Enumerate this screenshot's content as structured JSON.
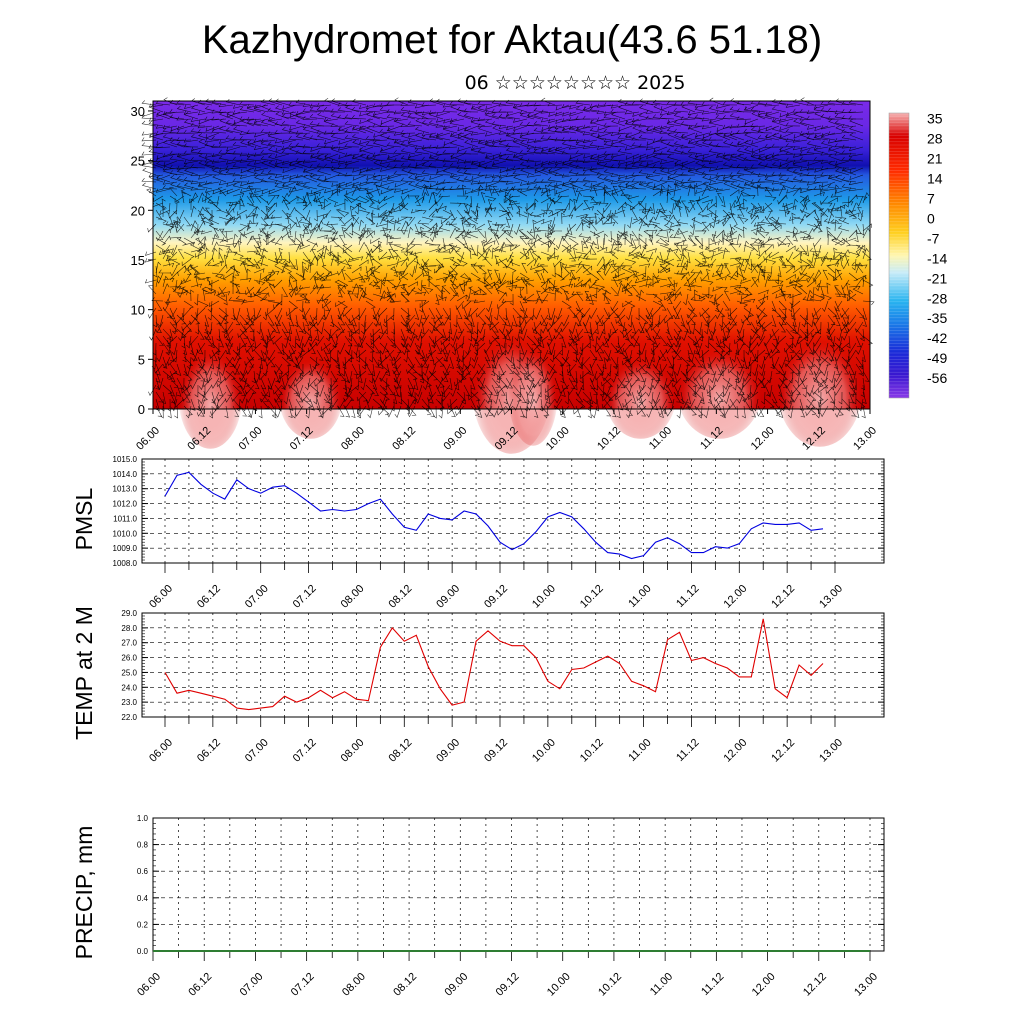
{
  "header": {
    "title": "Kazhydromet for Aktau(43.6 51.18)",
    "subtitle": "06 ☆☆☆☆☆☆☆☆ 2025"
  },
  "chart_data": [
    {
      "type": "heatmap",
      "title": "",
      "x_ticks": [
        "06.00",
        "06.12",
        "07.00",
        "07.12",
        "08.00",
        "08.12",
        "09.00",
        "09.12",
        "10.00",
        "10.12",
        "11.00",
        "11.12",
        "12.00",
        "12.12",
        "13.00"
      ],
      "y_ticks": [
        "0",
        "5",
        "10",
        "15",
        "20",
        "25",
        "30"
      ],
      "ylim": [
        0,
        31
      ],
      "colorbar_labels": [
        "35",
        "28",
        "21",
        "14",
        "7",
        "0",
        "-7",
        "-14",
        "-21",
        "-28",
        "-35",
        "-42",
        "-49",
        "-56"
      ],
      "colorbar_range": [
        -63,
        37
      ],
      "colors": [
        "#7a2ae8",
        "#3a1ad0",
        "#2060e8",
        "#29b0f0",
        "#c0e8f8",
        "#fff8b0",
        "#ffe040",
        "#ffa000",
        "#ff4000",
        "#e81000",
        "#c80000",
        "#f0a0a0"
      ],
      "overlay": "wind barbs",
      "grid": false
    },
    {
      "type": "line",
      "ylabel": "PMSL",
      "ylim": [
        1008.0,
        1015.0
      ],
      "y_ticks": [
        "1008.0",
        "1009.0",
        "1010.0",
        "1011.0",
        "1012.0",
        "1013.0",
        "1014.0",
        "1015.0"
      ],
      "x_ticks": [
        "06.00",
        "06.12",
        "07.00",
        "07.12",
        "08.00",
        "08.12",
        "09.00",
        "09.12",
        "10.00",
        "10.12",
        "11.00",
        "11.12",
        "12.00",
        "12.12",
        "13.00"
      ],
      "series_color": "#0000e0",
      "grid": true,
      "x_hours": [
        0,
        3,
        6,
        9,
        12,
        15,
        18,
        21,
        24,
        27,
        30,
        33,
        36,
        39,
        42,
        45,
        48,
        51,
        54,
        57,
        60,
        63,
        66,
        69,
        72,
        75,
        78,
        81,
        84,
        87,
        90,
        93,
        96,
        99,
        102,
        105,
        108,
        111,
        114,
        117,
        120,
        123,
        126,
        129,
        132,
        135,
        138,
        141,
        144,
        147,
        150,
        153,
        156,
        159,
        162,
        165
      ],
      "values": [
        1012.5,
        1013.9,
        1014.1,
        1013.3,
        1012.7,
        1012.3,
        1013.6,
        1013.0,
        1012.7,
        1013.1,
        1013.2,
        1012.7,
        1012.1,
        1011.5,
        1011.6,
        1011.5,
        1011.6,
        1012.0,
        1012.3,
        1011.3,
        1010.4,
        1010.2,
        1011.3,
        1011.0,
        1010.9,
        1011.5,
        1011.3,
        1010.5,
        1009.4,
        1008.9,
        1009.3,
        1010.1,
        1011.1,
        1011.4,
        1011.1,
        1010.3,
        1009.4,
        1008.7,
        1008.6,
        1008.3,
        1008.5,
        1009.4,
        1009.7,
        1009.3,
        1008.7,
        1008.7,
        1009.1,
        1009.0,
        1009.3,
        1010.3,
        1010.7,
        1010.6,
        1010.6,
        1010.7,
        1010.2,
        1010.3
      ]
    },
    {
      "type": "line",
      "ylabel": "TEMP at 2 M",
      "ylim": [
        22.0,
        29.0
      ],
      "y_ticks": [
        "22.0",
        "23.0",
        "24.0",
        "25.0",
        "26.0",
        "27.0",
        "28.0",
        "29.0"
      ],
      "x_ticks": [
        "06.00",
        "06.12",
        "07.00",
        "07.12",
        "08.00",
        "08.12",
        "09.00",
        "09.12",
        "10.00",
        "10.12",
        "11.00",
        "11.12",
        "12.00",
        "12.12",
        "13.00"
      ],
      "series_color": "#e00000",
      "grid": true,
      "x_hours": [
        0,
        3,
        6,
        9,
        12,
        15,
        18,
        21,
        24,
        27,
        30,
        33,
        36,
        39,
        42,
        45,
        48,
        51,
        54,
        57,
        60,
        63,
        66,
        69,
        72,
        75,
        78,
        81,
        84,
        87,
        90,
        93,
        96,
        99,
        102,
        105,
        108,
        111,
        114,
        117,
        120,
        123,
        126,
        129,
        132,
        135,
        138,
        141,
        144,
        147,
        150,
        153,
        156,
        159,
        162,
        165
      ],
      "values": [
        25.0,
        23.6,
        23.8,
        23.6,
        23.4,
        23.2,
        22.6,
        22.5,
        22.6,
        22.7,
        23.4,
        23.0,
        23.3,
        23.8,
        23.3,
        23.7,
        23.2,
        23.1,
        26.7,
        28.0,
        27.1,
        27.5,
        25.4,
        23.9,
        22.8,
        23.0,
        27.1,
        27.8,
        27.1,
        26.8,
        26.8,
        26.0,
        24.4,
        23.9,
        25.2,
        25.3,
        25.7,
        26.1,
        25.6,
        24.4,
        24.1,
        23.7,
        27.2,
        27.7,
        25.8,
        26.0,
        25.6,
        25.3,
        24.7,
        24.7,
        28.6,
        23.9,
        23.3,
        25.5,
        24.8,
        25.6
      ]
    },
    {
      "type": "line",
      "ylabel": "PRECIP, mm",
      "ylim": [
        0.0,
        1.0
      ],
      "y_ticks": [
        "0.0",
        "0.2",
        "0.4",
        "0.6",
        "0.8",
        "1.0"
      ],
      "x_ticks": [
        "06.00",
        "06.12",
        "07.00",
        "07.12",
        "08.00",
        "08.12",
        "09.00",
        "09.12",
        "10.00",
        "10.12",
        "11.00",
        "11.12",
        "12.00",
        "12.12",
        "13.00"
      ],
      "series_color": "#2e7d32",
      "grid": true,
      "x_hours": [
        0,
        168
      ],
      "values": [
        0.0,
        0.0
      ]
    }
  ]
}
